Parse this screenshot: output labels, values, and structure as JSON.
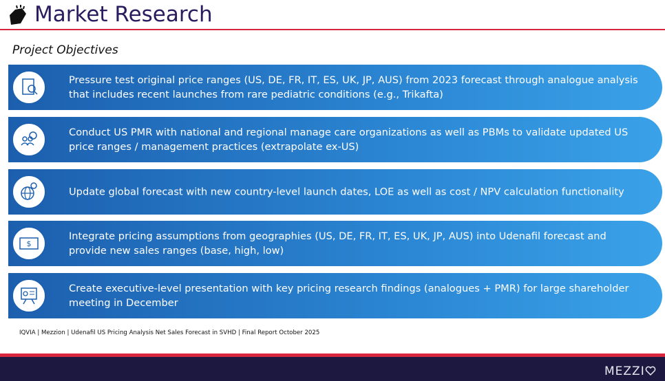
{
  "header": {
    "title": "Market Research"
  },
  "subtitle": "Project Objectives",
  "objectives": [
    {
      "text": "Pressure test original price ranges (US, DE, FR, IT, ES, UK, JP, AUS) from 2023 forecast through analogue analysis that includes recent launches from rare pediatric conditions (e.g., Trikafta)"
    },
    {
      "text": "Conduct US PMR with national and regional manage care organizations as well as PBMs to validate updated US price ranges / management practices (extrapolate ex-US)"
    },
    {
      "text": "Update global forecast with new country-level launch dates, LOE as well as cost / NPV calculation functionality"
    },
    {
      "text": "Integrate pricing assumptions from geographies (US, DE, FR, IT, ES, UK, JP, AUS) into Udenafil forecast and provide new sales ranges (base, high, low)"
    },
    {
      "text": "Create executive-level presentation with key pricing research findings (analogues + PMR) for large shareholder meeting in December"
    }
  ],
  "footer": {
    "source": "IQVIA | Mezzion | Udenafil US Pricing Analysis Net Sales Forecast in SVHD | Final Report October 2025",
    "logo": "MEZZI"
  }
}
